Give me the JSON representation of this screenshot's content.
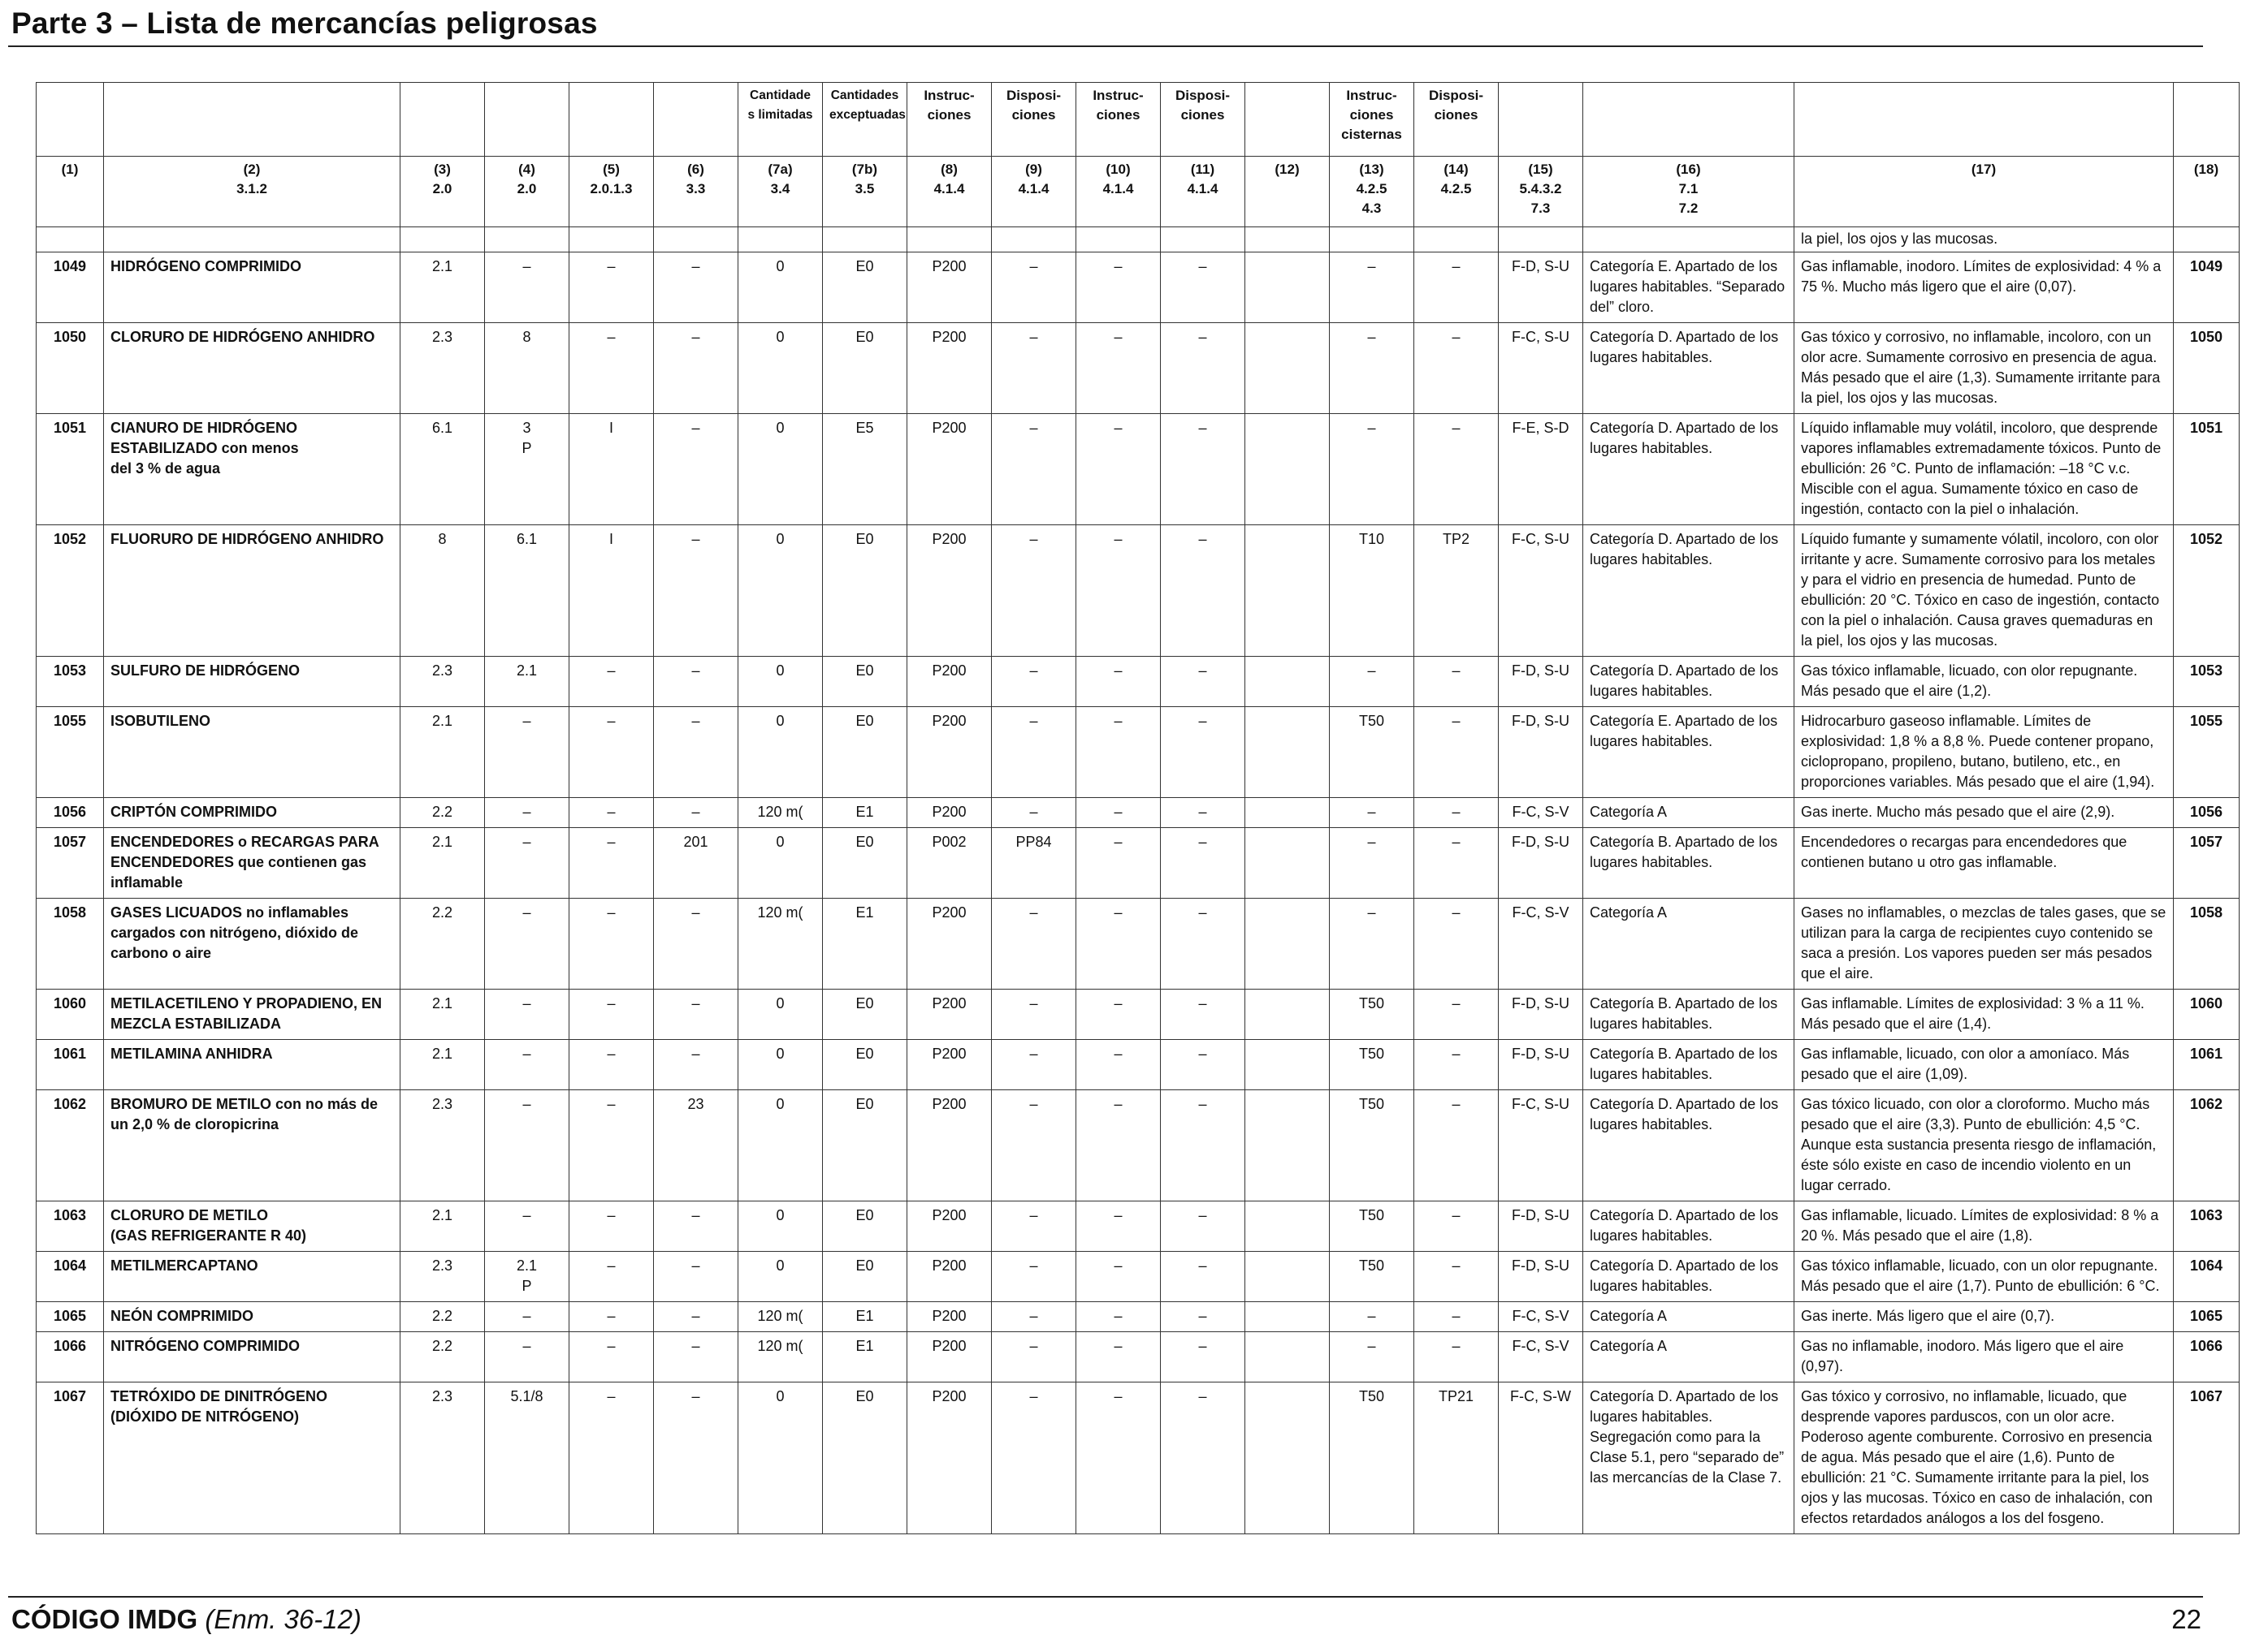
{
  "header": {
    "title": "Parte 3 – Lista de mercancías peligrosas"
  },
  "columns": {
    "names": [
      "",
      "",
      "",
      "",
      "",
      "",
      "Cantidade\ns limitadas",
      "Cantidades\nexceptuadas",
      "Instruc-\nciones",
      "Disposi-\nciones",
      "Instruc-\nciones",
      "Disposi-\nciones",
      "",
      "Instruc-\nciones\ncisternas",
      "Disposi-\nciones",
      "",
      "",
      "",
      ""
    ],
    "refs": [
      "(1)",
      "(2)\n3.1.2",
      "(3)\n2.0",
      "(4)\n2.0",
      "(5)\n2.0.1.3",
      "(6)\n3.3",
      "(7a)\n3.4",
      "(7b)\n3.5",
      "(8)\n4.1.4",
      "(9)\n4.1.4",
      "(10)\n4.1.4",
      "(11)\n4.1.4",
      "(12)",
      "(13)\n4.2.5\n4.3",
      "(14)\n4.2.5",
      "(15)\n5.4.3.2\n7.3",
      "(16)\n7.1\n7.2",
      "(17)",
      "(18)"
    ]
  },
  "continuation_text": "la piel, los ojos y las mucosas.",
  "rows": [
    {
      "un": "1049",
      "name": "HIDRÓGENO COMPRIMIDO",
      "cls": "2.1",
      "sub": "–",
      "pg": "–",
      "sp": "–",
      "lq": "0",
      "eq": "E0",
      "pi": "P200",
      "pp": "–",
      "ibc": "–",
      "ibcp": "–",
      "c12": "",
      "tank": "–",
      "tankp": "–",
      "ems": "F-D, S-U",
      "stow": "Categoría E. Apartado de los lugares habitables. “Separado del” cloro.",
      "props": "Gas inflamable, inodoro. Límites de explosividad: 4 % a 75 %. Mucho más ligero que el aire (0,07).",
      "un2": "1049"
    },
    {
      "un": "1050",
      "name": "CLORURO DE HIDRÓGENO ANHIDRO",
      "cls": "2.3",
      "sub": "8",
      "pg": "–",
      "sp": "–",
      "lq": "0",
      "eq": "E0",
      "pi": "P200",
      "pp": "–",
      "ibc": "–",
      "ibcp": "–",
      "c12": "",
      "tank": "–",
      "tankp": "–",
      "ems": "F-C, S-U",
      "stow": "Categoría D. Apartado de los lugares habitables.",
      "props": "Gas tóxico y corrosivo, no inflamable, incoloro, con un olor acre. Sumamente corrosivo en presencia de agua. Más pesado que el aire (1,3). Sumamente irritante para la piel, los ojos y las mucosas.",
      "un2": "1050"
    },
    {
      "un": "1051",
      "name": "CIANURO DE HIDRÓGENO\nESTABILIZADO con menos\ndel 3 % de agua",
      "cls": "6.1",
      "sub": "3\nP",
      "pg": "I",
      "sp": "–",
      "lq": "0",
      "eq": "E5",
      "pi": "P200",
      "pp": "–",
      "ibc": "–",
      "ibcp": "–",
      "c12": "",
      "tank": "–",
      "tankp": "–",
      "ems": "F-E, S-D",
      "stow": "Categoría D. Apartado de los lugares habitables.",
      "props": "Líquido inflamable muy volátil, incoloro, que desprende vapores inflamables extremadamente tóxicos. Punto de ebullición: 26 °C. Punto de inflamación: –18 °C v.c. Miscible con el agua. Sumamente tóxico en caso de ingestión, contacto con la piel o inhalación.",
      "un2": "1051"
    },
    {
      "un": "1052",
      "name": "FLUORURO DE HIDRÓGENO ANHIDRO",
      "cls": "8",
      "sub": "6.1",
      "pg": "I",
      "sp": "–",
      "lq": "0",
      "eq": "E0",
      "pi": "P200",
      "pp": "–",
      "ibc": "–",
      "ibcp": "–",
      "c12": "",
      "tank": "T10",
      "tankp": "TP2",
      "ems": "F-C, S-U",
      "stow": "Categoría D. Apartado de los lugares habitables.",
      "props": "Líquido fumante y sumamente vólatil, incoloro, con olor irritante y acre. Sumamente corrosivo para los metales y para el vidrio en presencia de humedad. Punto de ebullición: 20 °C. Tóxico en caso de ingestión, contacto con la piel o inhalación. Causa graves quemaduras en la piel, los ojos y las mucosas.",
      "un2": "1052"
    },
    {
      "un": "1053",
      "name": "SULFURO DE HIDRÓGENO",
      "cls": "2.3",
      "sub": "2.1",
      "pg": "–",
      "sp": "–",
      "lq": "0",
      "eq": "E0",
      "pi": "P200",
      "pp": "–",
      "ibc": "–",
      "ibcp": "–",
      "c12": "",
      "tank": "–",
      "tankp": "–",
      "ems": "F-D, S-U",
      "stow": "Categoría D. Apartado de los lugares habitables.",
      "props": "Gas tóxico inflamable, licuado, con olor repugnante. Más pesado que el aire (1,2).",
      "un2": "1053"
    },
    {
      "un": "1055",
      "name": "ISOBUTILENO",
      "cls": "2.1",
      "sub": "–",
      "pg": "–",
      "sp": "–",
      "lq": "0",
      "eq": "E0",
      "pi": "P200",
      "pp": "–",
      "ibc": "–",
      "ibcp": "–",
      "c12": "",
      "tank": "T50",
      "tankp": "–",
      "ems": "F-D, S-U",
      "stow": "Categoría E. Apartado de los lugares habitables.",
      "props": "Hidrocarburo gaseoso inflamable. Límites de explosividad: 1,8 % a 8,8 %. Puede contener propano, ciclopropano, propileno, butano, butileno, etc., en proporciones variables. Más pesado que el aire (1,94).",
      "un2": "1055"
    },
    {
      "un": "1056",
      "name": "CRIPTÓN COMPRIMIDO",
      "cls": "2.2",
      "sub": "–",
      "pg": "–",
      "sp": "–",
      "lq": "120 m(",
      "eq": "E1",
      "pi": "P200",
      "pp": "–",
      "ibc": "–",
      "ibcp": "–",
      "c12": "",
      "tank": "–",
      "tankp": "–",
      "ems": "F-C, S-V",
      "stow": "Categoría A",
      "props": "Gas inerte. Mucho más pesado que el aire (2,9).",
      "un2": "1056"
    },
    {
      "un": "1057",
      "name": "ENCENDEDORES o RECARGAS PARA ENCENDEDORES que contienen gas inflamable",
      "cls": "2.1",
      "sub": "–",
      "pg": "–",
      "sp": "201",
      "lq": "0",
      "eq": "E0",
      "pi": "P002",
      "pp": "PP84",
      "ibc": "–",
      "ibcp": "–",
      "c12": "",
      "tank": "–",
      "tankp": "–",
      "ems": "F-D, S-U",
      "stow": "Categoría B. Apartado de los lugares habitables.",
      "props": "Encendedores o recargas para encendedores que contienen butano u otro gas inflamable.",
      "un2": "1057"
    },
    {
      "un": "1058",
      "name": "GASES LICUADOS no inflamables cargados con nitrógeno, dióxido de carbono o aire",
      "cls": "2.2",
      "sub": "–",
      "pg": "–",
      "sp": "–",
      "lq": "120 m(",
      "eq": "E1",
      "pi": "P200",
      "pp": "–",
      "ibc": "–",
      "ibcp": "–",
      "c12": "",
      "tank": "–",
      "tankp": "–",
      "ems": "F-C, S-V",
      "stow": "Categoría A",
      "props": "Gases no inflamables, o mezclas de tales gases, que se utilizan para la carga de recipientes cuyo contenido se saca a presión. Los vapores pueden ser más pesados que el aire.",
      "un2": "1058"
    },
    {
      "un": "1060",
      "name": "METILACETILENO Y PROPADIENO, EN MEZCLA ESTABILIZADA",
      "cls": "2.1",
      "sub": "–",
      "pg": "–",
      "sp": "–",
      "lq": "0",
      "eq": "E0",
      "pi": "P200",
      "pp": "–",
      "ibc": "–",
      "ibcp": "–",
      "c12": "",
      "tank": "T50",
      "tankp": "–",
      "ems": "F-D, S-U",
      "stow": "Categoría B. Apartado de los lugares habitables.",
      "props": "Gas inflamable. Límites de explosividad: 3 % a 11 %. Más pesado que el aire (1,4).",
      "un2": "1060"
    },
    {
      "un": "1061",
      "name": "METILAMINA ANHIDRA",
      "cls": "2.1",
      "sub": "–",
      "pg": "–",
      "sp": "–",
      "lq": "0",
      "eq": "E0",
      "pi": "P200",
      "pp": "–",
      "ibc": "–",
      "ibcp": "–",
      "c12": "",
      "tank": "T50",
      "tankp": "–",
      "ems": "F-D, S-U",
      "stow": "Categoría B. Apartado de los lugares habitables.",
      "props": "Gas inflamable, licuado, con olor a amoníaco. Más pesado que el aire (1,09).",
      "un2": "1061"
    },
    {
      "un": "1062",
      "name": "BROMURO DE METILO con no más de un 2,0 % de cloropicrina",
      "cls": "2.3",
      "sub": "–",
      "pg": "–",
      "sp": "23",
      "lq": "0",
      "eq": "E0",
      "pi": "P200",
      "pp": "–",
      "ibc": "–",
      "ibcp": "–",
      "c12": "",
      "tank": "T50",
      "tankp": "–",
      "ems": "F-C, S-U",
      "stow": "Categoría D. Apartado de los lugares habitables.",
      "props": "Gas tóxico licuado, con olor a cloroformo. Mucho más pesado que el aire (3,3). Punto de ebullición: 4,5 °C. Aunque esta sustancia presenta riesgo de inflamación, éste sólo existe en caso de incendio violento en un lugar cerrado.",
      "un2": "1062"
    },
    {
      "un": "1063",
      "name": "CLORURO DE METILO\n(GAS REFRIGERANTE R 40)",
      "cls": "2.1",
      "sub": "–",
      "pg": "–",
      "sp": "–",
      "lq": "0",
      "eq": "E0",
      "pi": "P200",
      "pp": "–",
      "ibc": "–",
      "ibcp": "–",
      "c12": "",
      "tank": "T50",
      "tankp": "–",
      "ems": "F-D, S-U",
      "stow": "Categoría D. Apartado de los lugares habitables.",
      "props": "Gas inflamable, licuado. Límites de explosividad: 8 % a 20 %. Más pesado que el aire (1,8).",
      "un2": "1063"
    },
    {
      "un": "1064",
      "name": "METILMERCAPTANO",
      "cls": "2.3",
      "sub": "2.1\nP",
      "pg": "–",
      "sp": "–",
      "lq": "0",
      "eq": "E0",
      "pi": "P200",
      "pp": "–",
      "ibc": "–",
      "ibcp": "–",
      "c12": "",
      "tank": "T50",
      "tankp": "–",
      "ems": "F-D, S-U",
      "stow": "Categoría D. Apartado de los lugares habitables.",
      "props": "Gas tóxico inflamable, licuado, con un olor repugnante. Más pesado que el aire (1,7). Punto de ebullición: 6 °C.",
      "un2": "1064"
    },
    {
      "un": "1065",
      "name": "NEÓN COMPRIMIDO",
      "cls": "2.2",
      "sub": "–",
      "pg": "–",
      "sp": "–",
      "lq": "120 m(",
      "eq": "E1",
      "pi": "P200",
      "pp": "–",
      "ibc": "–",
      "ibcp": "–",
      "c12": "",
      "tank": "–",
      "tankp": "–",
      "ems": "F-C, S-V",
      "stow": "Categoría A",
      "props": "Gas inerte. Más ligero que el aire (0,7).",
      "un2": "1065"
    },
    {
      "un": "1066",
      "name": "NITRÓGENO COMPRIMIDO",
      "cls": "2.2",
      "sub": "–",
      "pg": "–",
      "sp": "–",
      "lq": "120 m(",
      "eq": "E1",
      "pi": "P200",
      "pp": "–",
      "ibc": "–",
      "ibcp": "–",
      "c12": "",
      "tank": "–",
      "tankp": "–",
      "ems": "F-C, S-V",
      "stow": "Categoría A",
      "props": "Gas no inflamable, inodoro. Más ligero que el aire (0,97).",
      "un2": "1066"
    },
    {
      "un": "1067",
      "name": "TETRÓXIDO DE DINITRÓGENO\n(DIÓXIDO DE NITRÓGENO)",
      "cls": "2.3",
      "sub": "5.1/8",
      "pg": "–",
      "sp": "–",
      "lq": "0",
      "eq": "E0",
      "pi": "P200",
      "pp": "–",
      "ibc": "–",
      "ibcp": "–",
      "c12": "",
      "tank": "T50",
      "tankp": "TP21",
      "ems": "F-C, S-W",
      "stow": "Categoría D. Apartado de los lugares habitables. Segregación como para la Clase 5.1, pero “separado de” las mercancías de la Clase 7.",
      "props": "Gas tóxico y corrosivo, no inflamable, licuado, que desprende vapores parduscos, con un olor acre. Poderoso agente comburente. Corrosivo en presencia de agua. Más pesado que el aire (1,6).  Punto de ebullición: 21 °C. Sumamente irritante para la piel, los ojos y las mucosas. Tóxico en caso de inhalación, con efectos retardados análogos a los del fosgeno.",
      "un2": "1067"
    }
  ],
  "footer": {
    "code_bold": "CÓDIGO IMDG",
    "code_italic": "(Enm. 36-12)",
    "page_number": "22"
  }
}
